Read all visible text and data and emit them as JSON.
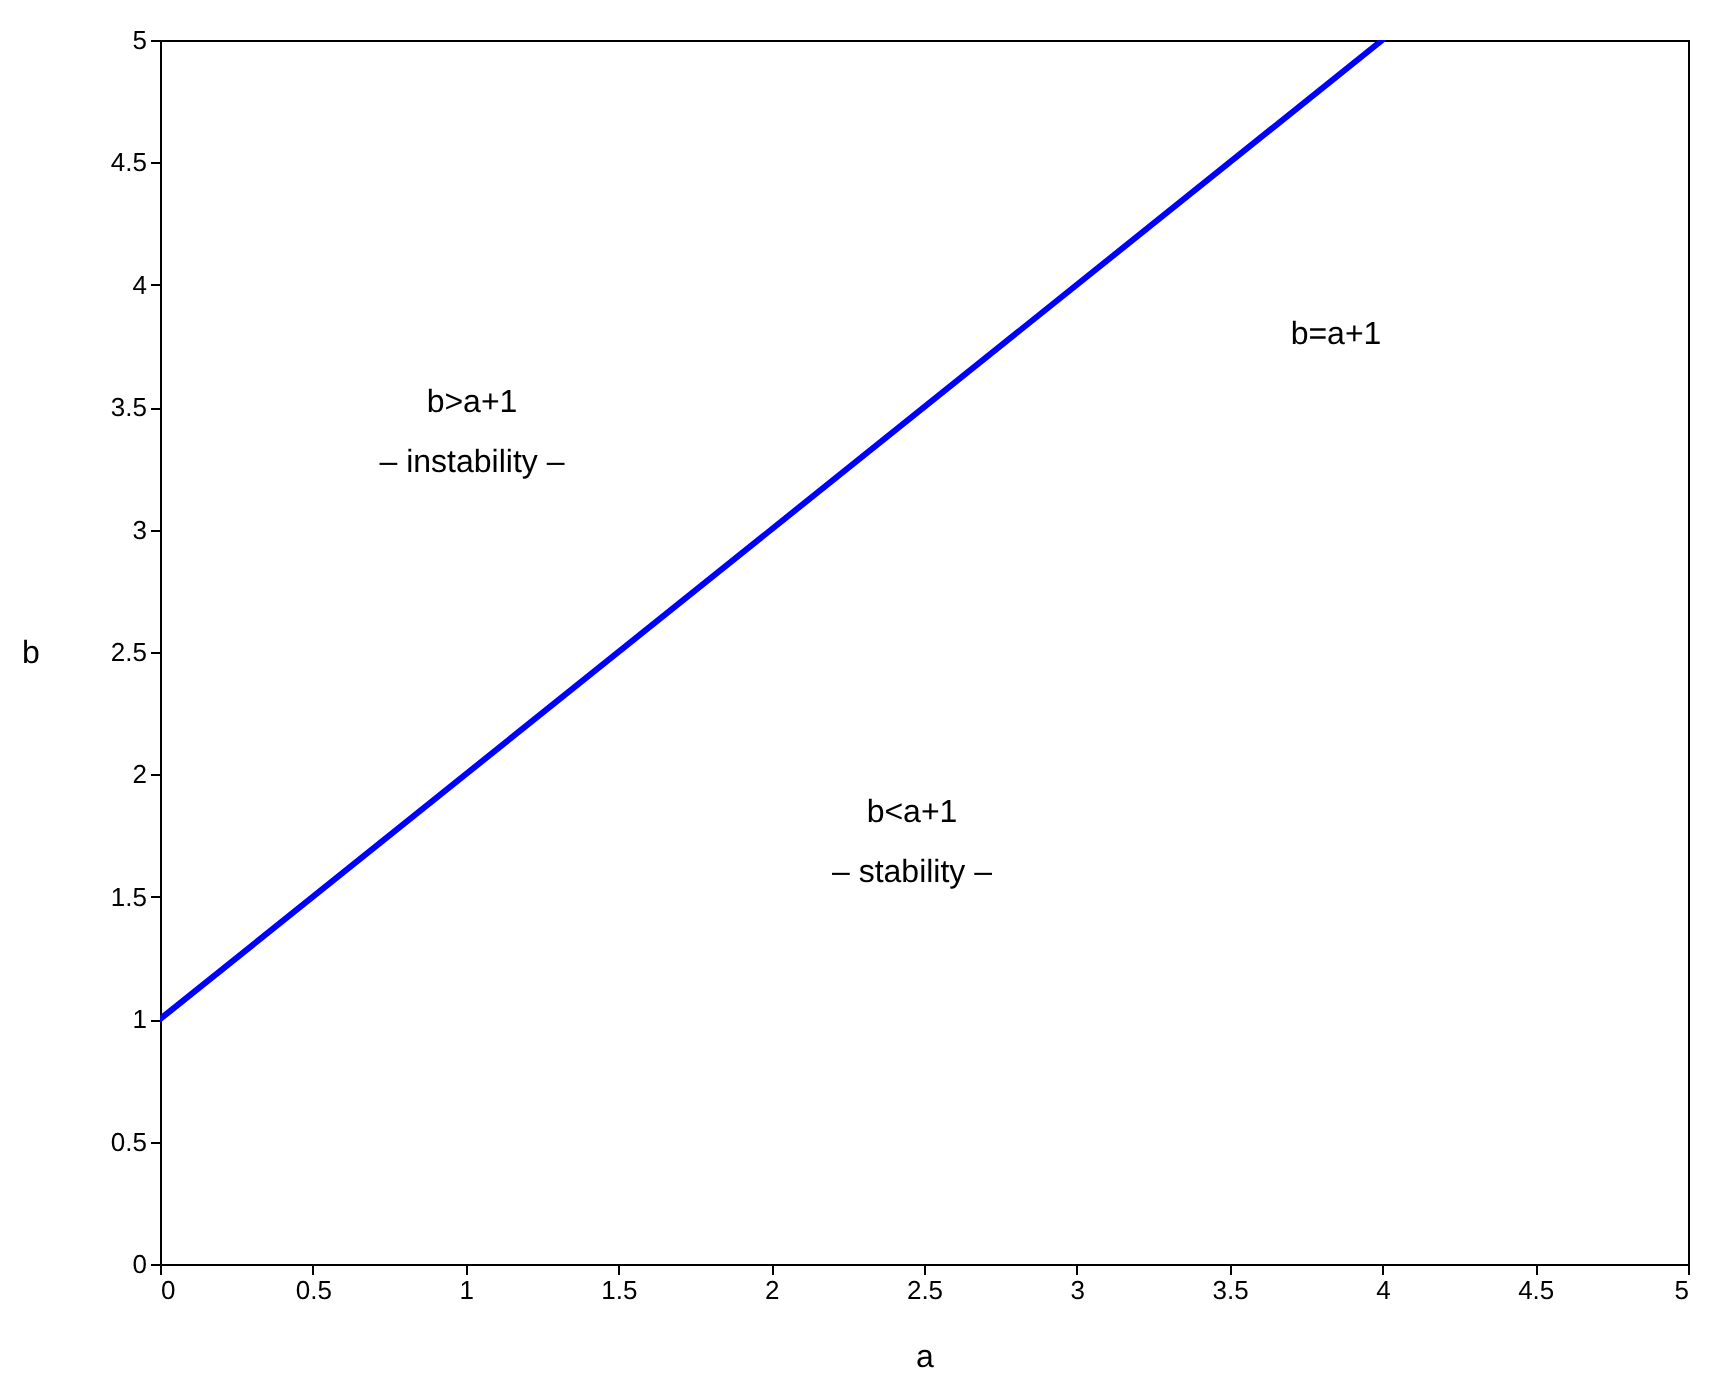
{
  "chart_data": {
    "type": "line",
    "x": [
      0,
      4
    ],
    "series": [
      {
        "color": "#0000ff",
        "values": [
          1,
          5
        ]
      }
    ],
    "xlim": [
      0,
      5
    ],
    "ylim": [
      0,
      5
    ],
    "xticks": [
      0,
      0.5,
      1,
      1.5,
      2,
      2.5,
      3,
      3.5,
      4,
      4.5,
      5
    ],
    "yticks": [
      0,
      0.5,
      1,
      1.5,
      2,
      2.5,
      3,
      3.5,
      4,
      4.5,
      5
    ],
    "xlabel": "a",
    "ylabel": "b",
    "annotations": [
      "b>a+1",
      "– instability –",
      "b<a+1",
      "– stability –",
      "b=a+1"
    ]
  }
}
